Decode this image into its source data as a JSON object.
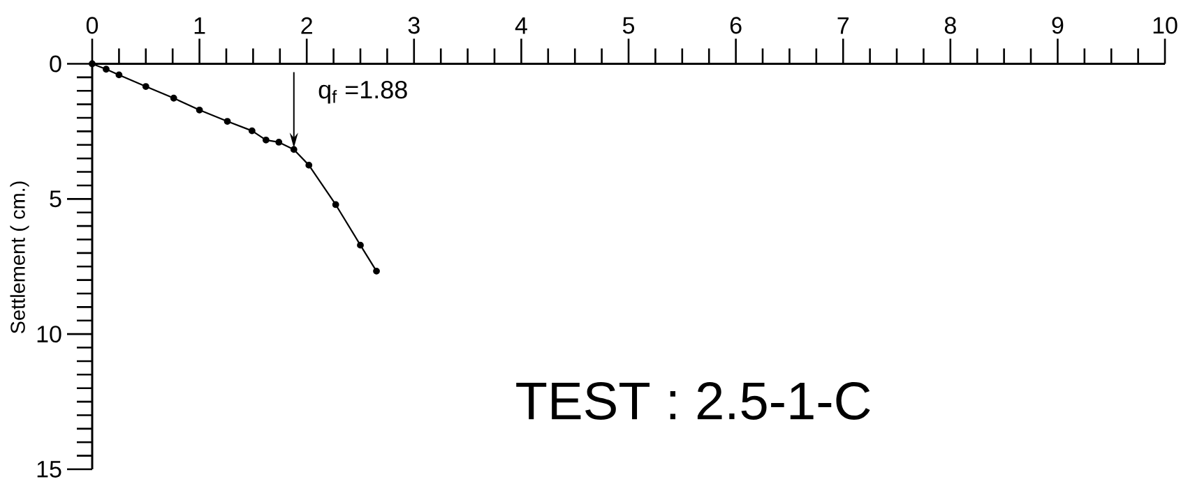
{
  "chart_data": {
    "type": "line",
    "ylabel": "Settlement ( cm.)",
    "annotations": [
      {
        "text": "q$_{f}$ =1.88",
        "x": 1.88,
        "y": 3.17
      },
      "TEST : 2.5-1-C"
    ],
    "x": [
      0,
      0.13,
      0.25,
      0.5,
      0.76,
      1.0,
      1.26,
      1.49,
      1.62,
      1.74,
      1.88,
      2.02,
      2.27,
      2.5,
      2.65
    ],
    "series": [
      {
        "color": "#000000",
        "values": [
          0,
          0.2,
          0.41,
          0.84,
          1.27,
          1.71,
          2.13,
          2.48,
          2.82,
          2.9,
          3.17,
          3.75,
          5.21,
          6.71,
          7.67
        ]
      }
    ],
    "xlim": [
      0,
      10
    ],
    "ylim": [
      15,
      0
    ],
    "xticks": [
      0,
      1,
      2,
      3,
      4,
      5,
      6,
      7,
      8,
      9,
      10
    ],
    "yticks": [
      0,
      5,
      10,
      15
    ],
    "marker": "circle",
    "line_style": "solid"
  }
}
